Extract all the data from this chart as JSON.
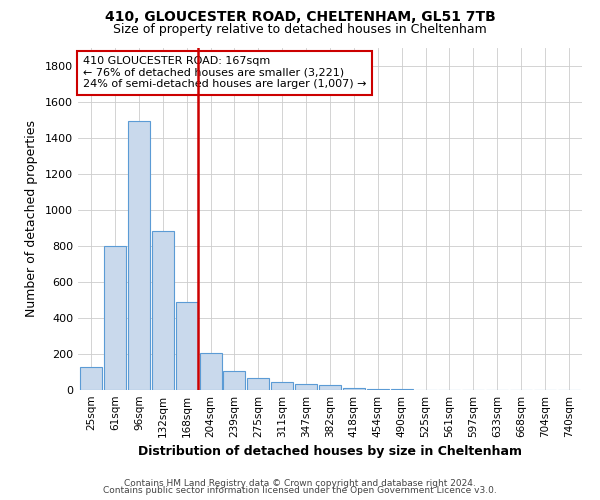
{
  "title1": "410, GLOUCESTER ROAD, CHELTENHAM, GL51 7TB",
  "title2": "Size of property relative to detached houses in Cheltenham",
  "xlabel": "Distribution of detached houses by size in Cheltenham",
  "ylabel": "Number of detached properties",
  "footer1": "Contains HM Land Registry data © Crown copyright and database right 2024.",
  "footer2": "Contains public sector information licensed under the Open Government Licence v3.0.",
  "categories": [
    "25sqm",
    "61sqm",
    "96sqm",
    "132sqm",
    "168sqm",
    "204sqm",
    "239sqm",
    "275sqm",
    "311sqm",
    "347sqm",
    "382sqm",
    "418sqm",
    "454sqm",
    "490sqm",
    "525sqm",
    "561sqm",
    "597sqm",
    "633sqm",
    "668sqm",
    "704sqm",
    "740sqm"
  ],
  "values": [
    125,
    800,
    1490,
    880,
    490,
    205,
    105,
    65,
    45,
    35,
    30,
    12,
    5,
    3,
    2,
    2,
    1,
    1,
    1,
    1,
    1
  ],
  "bar_color": "#c9d9ec",
  "bar_edge_color": "#5b9bd5",
  "annotation_text_line1": "410 GLOUCESTER ROAD: 167sqm",
  "annotation_text_line2": "← 76% of detached houses are smaller (3,221)",
  "annotation_text_line3": "24% of semi-detached houses are larger (1,007) →",
  "red_line_color": "#cc0000",
  "annotation_box_color": "#cc0000",
  "red_line_bar_index": 4,
  "ylim": [
    0,
    1900
  ],
  "yticks": [
    0,
    200,
    400,
    600,
    800,
    1000,
    1200,
    1400,
    1600,
    1800
  ]
}
